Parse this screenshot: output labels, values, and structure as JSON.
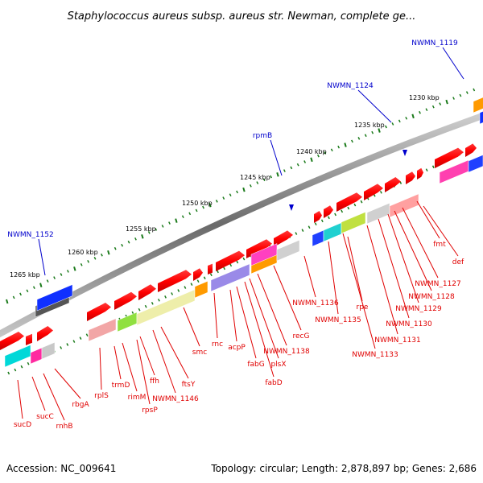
{
  "title": "Staphylococcus aureus subsp. aureus str. Newman, complete ge...",
  "footer": {
    "accession": "Accession: NC_009641",
    "summary": "Topology: circular; Length: 2,878,897 bp; Genes: 2,686"
  },
  "colors": {
    "scale_ticks": "#1a7a1a",
    "backbone": "#888888",
    "label_red": "#e00000",
    "label_blue": "#0000cc",
    "gene_red": "#ff0000"
  },
  "scale_labels": [
    "1230 kbp",
    "1235 kbp",
    "1240 kbp",
    "1245 kbp",
    "1250 kbp",
    "1255 kbp",
    "1260 kbp",
    "1265 kbp"
  ],
  "top_labels": [
    "NWMN_1119",
    "NWMN_1124",
    "rpmB",
    "NWMN_1152"
  ],
  "bottom_labels": [
    "def",
    "fmt",
    "NWMN_1127",
    "NWMN_1128",
    "NWMN_1129",
    "NWMN_1130",
    "NWMN_1131",
    "NWMN_1133",
    "rpe",
    "NWMN_1135",
    "NWMN_1136",
    "recG",
    "NWMN_1138",
    "plsX",
    "fabD",
    "fabG",
    "acpP",
    "rnc",
    "smc",
    "ftsY",
    "NWMN_1146",
    "ffh",
    "rpsP",
    "rimM",
    "trmD",
    "rplS",
    "rbgA",
    "rnhB",
    "sucC",
    "sucD"
  ]
}
